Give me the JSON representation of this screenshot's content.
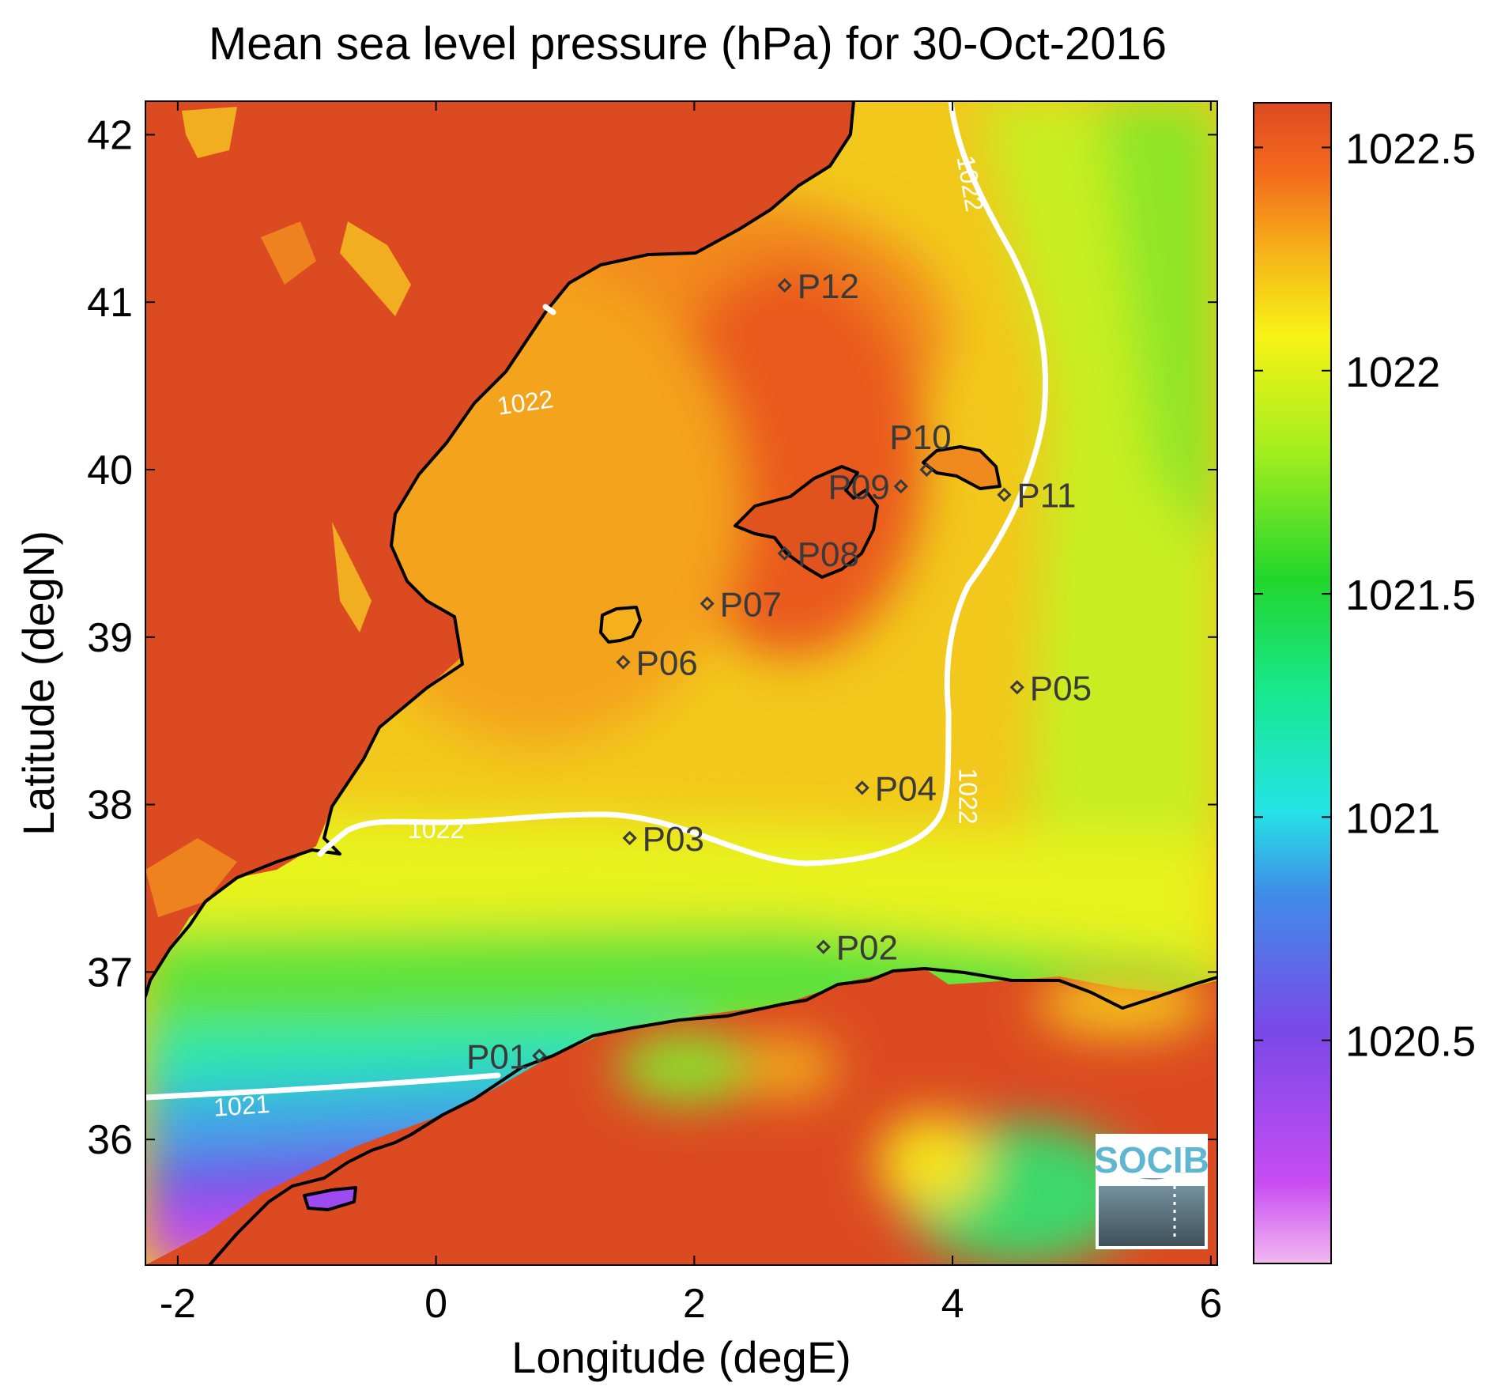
{
  "title": "Mean sea level pressure (hPa) for 30-Oct-2016",
  "x_axis": {
    "label": "Longitude (degE)",
    "ticks": [
      "-2",
      "0",
      "2",
      "4",
      "6"
    ]
  },
  "y_axis": {
    "label": "Latitude (degN)",
    "ticks": [
      "42",
      "41",
      "40",
      "39",
      "38",
      "37",
      "36"
    ]
  },
  "colorbar": {
    "ticks": [
      "1022.5",
      "1022",
      "1021.5",
      "1021",
      "1020.5"
    ]
  },
  "logo": "SOCIB",
  "chart_data": {
    "type": "heatmap",
    "variable": "Mean sea level pressure",
    "units": "hPa",
    "date": "30-Oct-2016",
    "xlim": [
      -2.25,
      6.05
    ],
    "ylim": [
      35.25,
      42.2
    ],
    "colorbar_range": [
      1020.0,
      1022.6
    ],
    "contour_labels": [
      {
        "text": "1022",
        "lon": 0.7,
        "lat": 40.35
      },
      {
        "text": "1022",
        "lon": 4.07,
        "lat": 41.7
      },
      {
        "text": "1022",
        "lon": 0.0,
        "lat": 37.8
      },
      {
        "text": "1022",
        "lon": 4.05,
        "lat": 38.05
      },
      {
        "text": "1021",
        "lon": -1.5,
        "lat": 36.15
      }
    ],
    "stations": [
      {
        "name": "P01",
        "lon": 0.8,
        "lat": 36.5
      },
      {
        "name": "P02",
        "lon": 3.0,
        "lat": 37.15
      },
      {
        "name": "P03",
        "lon": 1.5,
        "lat": 37.8
      },
      {
        "name": "P04",
        "lon": 3.3,
        "lat": 38.1
      },
      {
        "name": "P05",
        "lon": 4.5,
        "lat": 38.7
      },
      {
        "name": "P06",
        "lon": 1.45,
        "lat": 38.85
      },
      {
        "name": "P07",
        "lon": 2.1,
        "lat": 39.2
      },
      {
        "name": "P08",
        "lon": 2.7,
        "lat": 39.5
      },
      {
        "name": "P09",
        "lon": 3.6,
        "lat": 39.9
      },
      {
        "name": "P10",
        "lon": 3.8,
        "lat": 40.0
      },
      {
        "name": "P11",
        "lon": 4.4,
        "lat": 39.85
      },
      {
        "name": "P12",
        "lon": 2.7,
        "lat": 41.1
      }
    ]
  }
}
